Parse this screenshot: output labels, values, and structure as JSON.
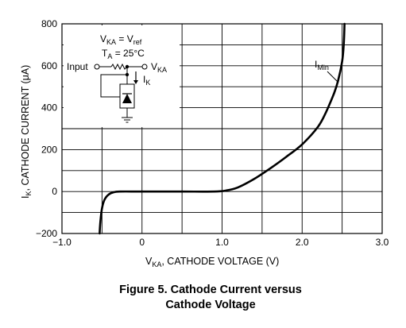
{
  "chart_data": {
    "type": "line",
    "title": "",
    "xlabel": {
      "main": "V",
      "sub": "KA",
      "rest": ", CATHODE VOLTAGE (V)"
    },
    "ylabel": {
      "main": "I",
      "sub": "K",
      "rest": ", CATHODE CURRENT (",
      "mu": "μ",
      "unit": "A)"
    },
    "xlim": [
      -1.0,
      3.0
    ],
    "ylim": [
      -200,
      800
    ],
    "x_ticks": [
      {
        "value": -1.0,
        "label": "−1.0"
      },
      {
        "value": 0,
        "label": "0"
      },
      {
        "value": 1.0,
        "label": "1.0"
      },
      {
        "value": 2.0,
        "label": "2.0"
      },
      {
        "value": 3.0,
        "label": "3.0"
      }
    ],
    "y_ticks": [
      {
        "value": -200,
        "label": "−200"
      },
      {
        "value": 0,
        "label": "0"
      },
      {
        "value": 200,
        "label": "200"
      },
      {
        "value": 400,
        "label": "400"
      },
      {
        "value": 600,
        "label": "600"
      },
      {
        "value": 800,
        "label": "800"
      }
    ],
    "grid": true,
    "series": [
      {
        "points": [
          [
            -0.53,
            -200
          ],
          [
            -0.52,
            -140
          ],
          [
            -0.5,
            -80
          ],
          [
            -0.47,
            -40
          ],
          [
            -0.42,
            -15
          ],
          [
            -0.36,
            -4
          ],
          [
            -0.28,
            0
          ],
          [
            0.0,
            0
          ],
          [
            0.5,
            0
          ],
          [
            0.9,
            0
          ],
          [
            1.05,
            5
          ],
          [
            1.2,
            20
          ],
          [
            1.4,
            60
          ],
          [
            1.6,
            110
          ],
          [
            1.8,
            165
          ],
          [
            2.0,
            225
          ],
          [
            2.2,
            310
          ],
          [
            2.3,
            380
          ],
          [
            2.4,
            470
          ],
          [
            2.45,
            530
          ],
          [
            2.5,
            620
          ],
          [
            2.52,
            700
          ],
          [
            2.53,
            800
          ]
        ]
      }
    ],
    "annotation": {
      "main": "I",
      "sub": "Min",
      "at": [
        2.47,
        520
      ]
    }
  },
  "inset": {
    "line1": {
      "a": "V",
      "a_sub": "KA",
      "eq": " = V",
      "b_sub": "ref"
    },
    "line2": {
      "a": "T",
      "a_sub": "A",
      "eq": " = 25°C"
    },
    "input_label": "Input",
    "vka_label": {
      "main": "V",
      "sub": "KA"
    },
    "ik_label": {
      "main": "I",
      "sub": "K"
    }
  },
  "caption": {
    "line1": "Figure 5. Cathode Current versus",
    "line2": "Cathode Voltage"
  }
}
